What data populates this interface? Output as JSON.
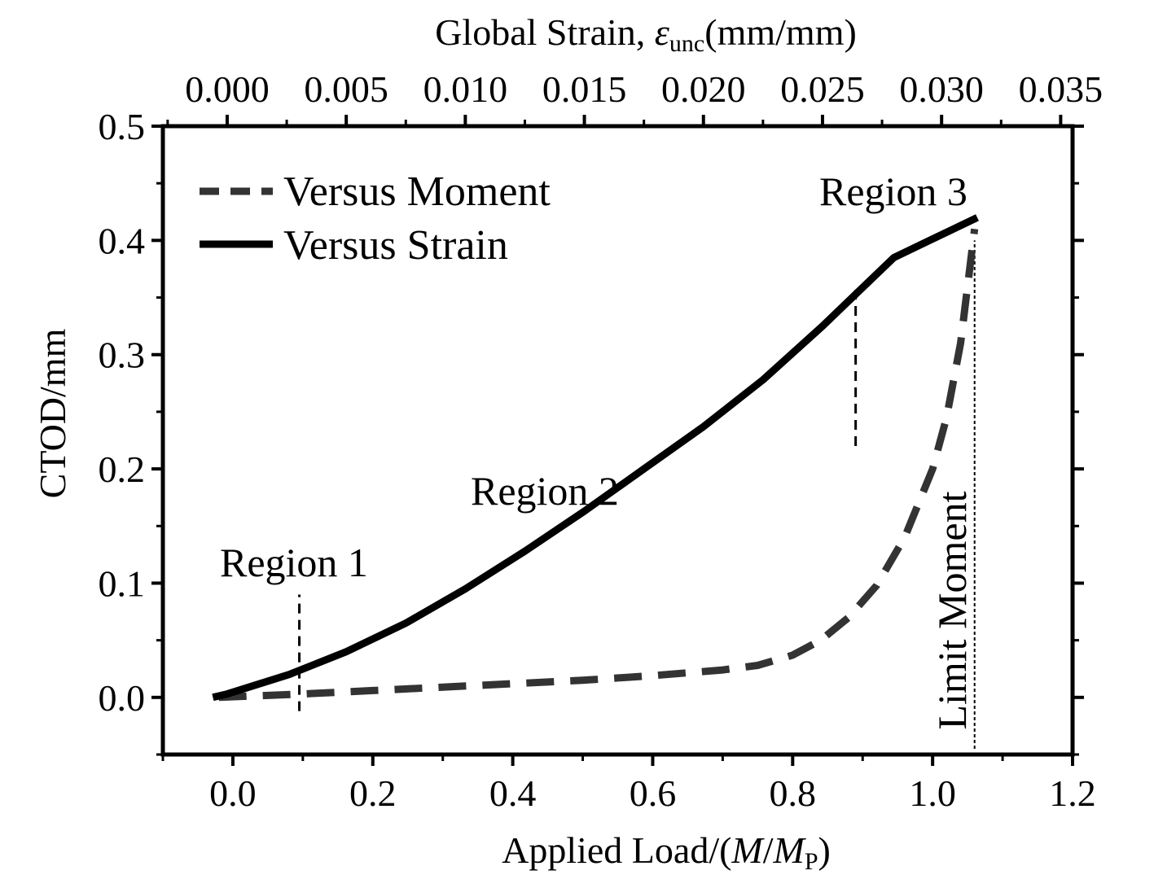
{
  "chart_data": {
    "type": "line",
    "title": "",
    "x_bottom": {
      "label_prefix": "Applied Load/(",
      "label_M": "M",
      "label_slash": "/",
      "label_Mp": "M",
      "label_p_sub": "P",
      "label_suffix": ")",
      "range": [
        -0.1,
        1.2
      ],
      "ticks": [
        0.0,
        0.2,
        0.4,
        0.6,
        0.8,
        1.0,
        1.2
      ],
      "tick_labels": [
        "0.0",
        "0.2",
        "0.4",
        "0.6",
        "0.8",
        "1.0",
        "1.2"
      ]
    },
    "x_top": {
      "label_prefix": "Global Strain, ",
      "label_symbol": "ε",
      "label_sub": "unc",
      "label_suffix": "(mm/mm)",
      "range": [
        -0.0027,
        0.0355
      ],
      "ticks": [
        0.0,
        0.005,
        0.01,
        0.015,
        0.02,
        0.025,
        0.03,
        0.035
      ],
      "tick_labels": [
        "0.000",
        "0.005",
        "0.010",
        "0.015",
        "0.020",
        "0.025",
        "0.030",
        "0.035"
      ]
    },
    "y": {
      "label": "CTOD/mm",
      "range": [
        -0.05,
        0.5
      ],
      "ticks": [
        0.0,
        0.1,
        0.2,
        0.3,
        0.4,
        0.5
      ],
      "tick_labels": [
        "0.0",
        "0.1",
        "0.2",
        "0.3",
        "0.4",
        "0.5"
      ]
    },
    "grid": false,
    "legend": "top-left",
    "series": [
      {
        "name": "Versus Moment",
        "axis": "bottom",
        "style": "dashed",
        "color": "#333333",
        "x": [
          -0.02,
          0.1,
          0.2,
          0.3,
          0.4,
          0.5,
          0.6,
          0.7,
          0.75,
          0.8,
          0.84,
          0.88,
          0.92,
          0.96,
          1.0,
          1.02,
          1.04,
          1.05,
          1.06
        ],
        "y": [
          0.0,
          0.003,
          0.006,
          0.009,
          0.012,
          0.015,
          0.019,
          0.024,
          0.028,
          0.037,
          0.05,
          0.07,
          0.098,
          0.14,
          0.2,
          0.245,
          0.31,
          0.36,
          0.41
        ]
      },
      {
        "name": "Versus Strain",
        "axis": "top",
        "style": "solid",
        "color": "#000000",
        "x": [
          -0.0006,
          0.0,
          0.0026,
          0.005,
          0.0075,
          0.01,
          0.0125,
          0.015,
          0.0175,
          0.02,
          0.0225,
          0.025,
          0.0265,
          0.028,
          0.03,
          0.0315
        ],
        "y": [
          0.0,
          0.003,
          0.02,
          0.04,
          0.065,
          0.095,
          0.128,
          0.163,
          0.2,
          0.237,
          0.278,
          0.325,
          0.355,
          0.385,
          0.405,
          0.42
        ]
      }
    ],
    "annotations": [
      {
        "text": "Region 1",
        "x": 0.1,
        "y": 0.117
      },
      {
        "text": "Region 2",
        "x": 0.27,
        "y": 0.18
      },
      {
        "text": "Region 3",
        "x": 0.84,
        "y": 0.438
      },
      {
        "text": "Limit Moment",
        "x": 1.05,
        "y": 0.12
      }
    ],
    "reference_lines": [
      {
        "axis": "bottom",
        "x": 0.095,
        "y_range": [
          -0.012,
          0.09
        ],
        "style": "dashed"
      },
      {
        "axis": "bottom",
        "x": 0.89,
        "y_range": [
          0.22,
          0.36
        ],
        "style": "dashed"
      },
      {
        "axis": "bottom",
        "x": 1.06,
        "y_range": [
          -0.045,
          0.4
        ],
        "style": "dotted"
      }
    ]
  }
}
